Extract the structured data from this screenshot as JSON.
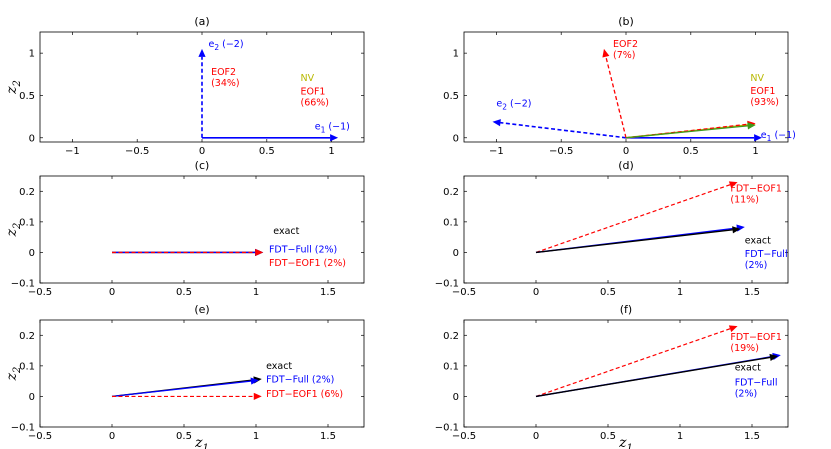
{
  "chart_data": [
    {
      "type": "vector",
      "title": "(a)",
      "xlim": [
        -1.25,
        1.25
      ],
      "ylim": [
        -0.05,
        1.25
      ],
      "xticks": [
        -1,
        -0.5,
        0,
        0.5,
        1
      ],
      "xtick_labels": [
        "−1",
        "−0.5",
        "0",
        "0.5",
        "1"
      ],
      "yticks": [
        0,
        0.5,
        1
      ],
      "ytick_labels": [
        "0",
        "0.5",
        "1"
      ],
      "ylabel": "z",
      "ylabel_sub": "2",
      "xlabel": "",
      "xlabel_sub": "",
      "vectors": [
        {
          "name": "e2",
          "x": 0,
          "y": 1.05,
          "color": "#0000ff",
          "dashed": true,
          "width": 1.6
        },
        {
          "name": "e1",
          "x": 1.05,
          "y": 0,
          "color": "#0000ff",
          "dashed": false,
          "width": 1.6
        }
      ],
      "annotations": [
        {
          "lines": [
            "e",
            "2",
            " (−2)"
          ],
          "sub": true,
          "x": 0.05,
          "y": 1.07,
          "color": "#0000ff"
        },
        {
          "lines": [
            "EOF2",
            "(34%)"
          ],
          "x": 0.07,
          "y": 0.74,
          "color": "#ff0000"
        },
        {
          "lines": [
            "NV"
          ],
          "x": 0.76,
          "y": 0.67,
          "color": "#b8b800"
        },
        {
          "lines": [
            "EOF1",
            "(66%)"
          ],
          "x": 0.76,
          "y": 0.51,
          "color": "#ff0000"
        },
        {
          "lines": [
            "e",
            "1",
            " (−1)"
          ],
          "sub": true,
          "x": 0.87,
          "y": 0.1,
          "color": "#0000ff"
        }
      ]
    },
    {
      "type": "vector",
      "title": "(b)",
      "xlim": [
        -1.25,
        1.25
      ],
      "ylim": [
        -0.05,
        1.25
      ],
      "xticks": [
        -1,
        -0.5,
        0,
        0.5,
        1
      ],
      "xtick_labels": [
        "−1",
        "−0.5",
        "0",
        "0.5",
        "1"
      ],
      "yticks": [
        0,
        0.5,
        1
      ],
      "ytick_labels": [
        "0",
        "0.5",
        "1"
      ],
      "ylabel": "",
      "ylabel_sub": "",
      "xlabel": "",
      "xlabel_sub": "",
      "vectors": [
        {
          "name": "e2",
          "x": -1.03,
          "y": 0.19,
          "color": "#0000ff",
          "dashed": true,
          "width": 1.6
        },
        {
          "name": "eof2",
          "x": -0.17,
          "y": 1.05,
          "color": "#ff0000",
          "dashed": true,
          "width": 1.3
        },
        {
          "name": "e1",
          "x": 1.05,
          "y": 0,
          "color": "#0000ff",
          "dashed": false,
          "width": 1.6
        },
        {
          "name": "nv",
          "x": 1.0,
          "y": 0.16,
          "color": "#b8b800",
          "dashed": false,
          "width": 1.6
        },
        {
          "name": "eof1",
          "x": 1.0,
          "y": 0.17,
          "color": "#ff0000",
          "dashed": true,
          "width": 1.3
        },
        {
          "name": "eof1-green",
          "x": 1.0,
          "y": 0.15,
          "color": "#3c9a1c",
          "dashed": false,
          "width": 1.2
        }
      ],
      "annotations": [
        {
          "lines": [
            "EOF2",
            "(7%)"
          ],
          "x": -0.1,
          "y": 1.07,
          "color": "#ff0000"
        },
        {
          "lines": [
            "e",
            "2",
            " (−2)"
          ],
          "sub": true,
          "x": -1.0,
          "y": 0.37,
          "color": "#0000ff"
        },
        {
          "lines": [
            "NV"
          ],
          "x": 0.96,
          "y": 0.67,
          "color": "#b8b800"
        },
        {
          "lines": [
            "EOF1",
            "(93%)"
          ],
          "x": 0.96,
          "y": 0.52,
          "color": "#ff0000"
        },
        {
          "lines": [
            "e",
            "1",
            " (−1)"
          ],
          "sub": true,
          "x": 1.04,
          "y": 0.0,
          "color": "#0000ff"
        }
      ]
    },
    {
      "type": "vector",
      "title": "(c)",
      "xlim": [
        -0.5,
        1.75
      ],
      "ylim": [
        -0.1,
        0.25
      ],
      "xticks": [
        -0.5,
        0,
        0.5,
        1,
        1.5
      ],
      "xtick_labels": [
        "−0.5",
        "0",
        "0.5",
        "1",
        "1.5"
      ],
      "yticks": [
        -0.1,
        0,
        0.1,
        0.2
      ],
      "ytick_labels": [
        "−0.1",
        "0",
        "0.1",
        "0.2"
      ],
      "ylabel": "z",
      "ylabel_sub": "2",
      "xlabel": "",
      "xlabel_sub": "",
      "vectors": [
        {
          "name": "exact",
          "x": 1.05,
          "y": 0,
          "color": "#000000",
          "dashed": false,
          "width": 1.4
        },
        {
          "name": "fdt-full",
          "x": 1.05,
          "y": 0,
          "color": "#0000ff",
          "dashed": false,
          "width": 1.4
        },
        {
          "name": "fdt-eof1",
          "x": 1.05,
          "y": 0,
          "color": "#ff0000",
          "dashed": true,
          "width": 1.4
        }
      ],
      "annotations": [
        {
          "lines": [
            "exact"
          ],
          "x": 1.12,
          "y": 0.06,
          "color": "#000000"
        },
        {
          "lines": [
            "FDT−Full (2%)"
          ],
          "x": 1.09,
          "y": 0.0,
          "color": "#0000ff"
        },
        {
          "lines": [
            "FDT−EOF1 (2%)"
          ],
          "x": 1.09,
          "y": -0.045,
          "color": "#ff0000"
        }
      ]
    },
    {
      "type": "vector",
      "title": "(d)",
      "xlim": [
        -0.5,
        1.75
      ],
      "ylim": [
        -0.1,
        0.25
      ],
      "xticks": [
        -0.5,
        0,
        0.5,
        1,
        1.5
      ],
      "xtick_labels": [
        "−0.5",
        "0",
        "0.5",
        "1",
        "1.5"
      ],
      "yticks": [
        -0.1,
        0,
        0.1,
        0.2
      ],
      "ytick_labels": [
        "−0.1",
        "0",
        "0.1",
        "0.2"
      ],
      "ylabel": "",
      "ylabel_sub": "",
      "xlabel": "",
      "xlabel_sub": "",
      "vectors": [
        {
          "name": "fdt-eof1",
          "x": 1.4,
          "y": 0.23,
          "color": "#ff0000",
          "dashed": true,
          "width": 1.2
        },
        {
          "name": "fdt-full",
          "x": 1.45,
          "y": 0.083,
          "color": "#0000ff",
          "dashed": false,
          "width": 1.4
        },
        {
          "name": "exact",
          "x": 1.42,
          "y": 0.077,
          "color": "#000000",
          "dashed": false,
          "width": 1.4
        }
      ],
      "annotations": [
        {
          "lines": [
            "FDT−EOF1",
            "(11%)"
          ],
          "x": 1.35,
          "y": 0.2,
          "color": "#ff0000"
        },
        {
          "lines": [
            "exact"
          ],
          "x": 1.45,
          "y": 0.03,
          "color": "#000000"
        },
        {
          "lines": [
            "FDT−Full",
            "(2%)"
          ],
          "x": 1.45,
          "y": -0.015,
          "color": "#0000ff"
        }
      ]
    },
    {
      "type": "vector",
      "title": "(e)",
      "xlim": [
        -0.5,
        1.75
      ],
      "ylim": [
        -0.1,
        0.25
      ],
      "xticks": [
        -0.5,
        0,
        0.5,
        1,
        1.5
      ],
      "xtick_labels": [
        "−0.5",
        "0",
        "0.5",
        "1",
        "1.5"
      ],
      "yticks": [
        -0.1,
        0,
        0.1,
        0.2
      ],
      "ytick_labels": [
        "−0.1",
        "0",
        "0.1",
        "0.2"
      ],
      "ylabel": "z",
      "ylabel_sub": "2",
      "xlabel": "z",
      "xlabel_sub": "1",
      "vectors": [
        {
          "name": "exact",
          "x": 1.04,
          "y": 0.057,
          "color": "#000000",
          "dashed": false,
          "width": 1.4
        },
        {
          "name": "fdt-full",
          "x": 1.02,
          "y": 0.053,
          "color": "#0000ff",
          "dashed": false,
          "width": 1.2
        },
        {
          "name": "fdt-eof1",
          "x": 1.04,
          "y": 0.0,
          "color": "#ff0000",
          "dashed": true,
          "width": 1.2
        }
      ],
      "annotations": [
        {
          "lines": [
            "exact"
          ],
          "x": 1.07,
          "y": 0.09,
          "color": "#000000"
        },
        {
          "lines": [
            "FDT−Full (2%)"
          ],
          "x": 1.07,
          "y": 0.045,
          "color": "#0000ff"
        },
        {
          "lines": [
            "FDT−EOF1 (6%)"
          ],
          "x": 1.07,
          "y": -0.002,
          "color": "#ff0000"
        }
      ]
    },
    {
      "type": "vector",
      "title": "(f)",
      "xlim": [
        -0.5,
        1.75
      ],
      "ylim": [
        -0.1,
        0.25
      ],
      "xticks": [
        -0.5,
        0,
        0.5,
        1,
        1.5
      ],
      "xtick_labels": [
        "−0.5",
        "0",
        "0.5",
        "1",
        "1.5"
      ],
      "yticks": [
        -0.1,
        0,
        0.1,
        0.2
      ],
      "ytick_labels": [
        "−0.1",
        "0",
        "0.1",
        "0.2"
      ],
      "ylabel": "",
      "ylabel_sub": "",
      "xlabel": "z",
      "xlabel_sub": "1",
      "vectors": [
        {
          "name": "fdt-eof1",
          "x": 1.4,
          "y": 0.23,
          "color": "#ff0000",
          "dashed": true,
          "width": 1.2
        },
        {
          "name": "fdt-full",
          "x": 1.7,
          "y": 0.135,
          "color": "#0000ff",
          "dashed": false,
          "width": 1.4
        },
        {
          "name": "exact",
          "x": 1.68,
          "y": 0.132,
          "color": "#000000",
          "dashed": false,
          "width": 1.4
        }
      ],
      "annotations": [
        {
          "lines": [
            "FDT−EOF1",
            "(19%)"
          ],
          "x": 1.35,
          "y": 0.185,
          "color": "#ff0000"
        },
        {
          "lines": [
            "exact"
          ],
          "x": 1.38,
          "y": 0.085,
          "color": "#000000"
        },
        {
          "lines": [
            "FDT−Full",
            "(2%)"
          ],
          "x": 1.38,
          "y": 0.035,
          "color": "#0000ff"
        }
      ]
    }
  ]
}
